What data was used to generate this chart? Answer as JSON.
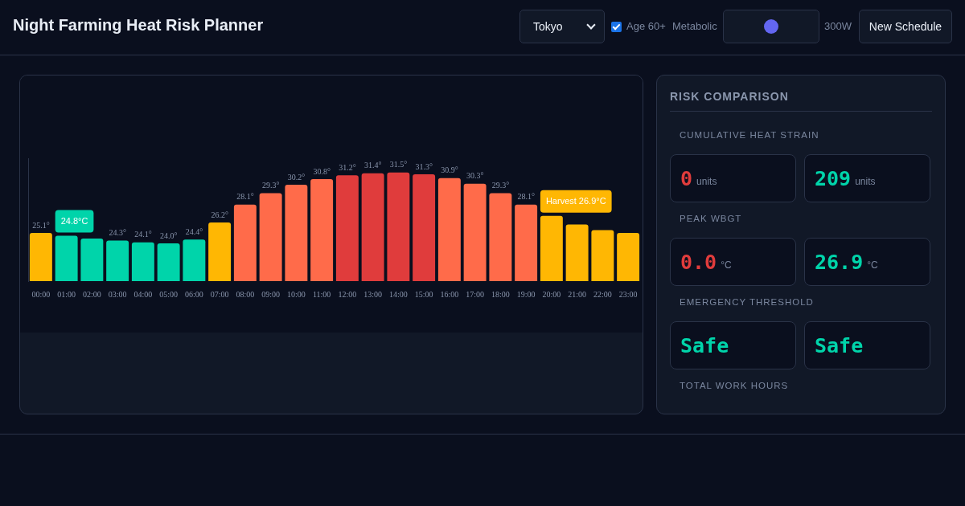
{
  "chart_data": [
    {
      "type": "bar",
      "title": "Night Farming Heat Risk Planner",
      "categories": [
        "00:00",
        "01:00",
        "02:00",
        "03:00",
        "04:00",
        "05:00",
        "06:00",
        "07:00",
        "08:00",
        "09:00",
        "10:00",
        "11:00",
        "12:00",
        "13:00",
        "14:00",
        "15:00",
        "16:00",
        "17:00",
        "18:00",
        "19:00",
        "20:00",
        "21:00",
        "22:00",
        "23:00"
      ],
      "values": [
        25.1,
        24.8,
        24.5,
        24.3,
        24.1,
        24.0,
        24.4,
        26.2,
        28.1,
        29.3,
        30.2,
        30.8,
        31.2,
        31.4,
        31.5,
        31.3,
        30.9,
        30.3,
        29.3,
        28.1,
        26.9,
        26.0,
        25.4,
        25.1
      ],
      "value_labels": [
        "25.1°",
        null,
        null,
        "24.3°",
        "24.1°",
        "24.0°",
        "24.4°",
        "26.2°",
        "28.1°",
        "29.3°",
        "30.2°",
        "30.8°",
        "31.2°",
        "31.4°",
        "31.5°",
        "31.3°",
        "30.9°",
        "30.3°",
        "29.3°",
        "28.1°",
        null,
        null,
        null,
        null
      ],
      "colors": [
        "#ffb703",
        "#00d4aa",
        "#00d4aa",
        "#00d4aa",
        "#00d4aa",
        "#00d4aa",
        "#00d4aa",
        "#ffb703",
        "#ff6b4a",
        "#ff6b4a",
        "#ff6b4a",
        "#ff6b4a",
        "#e03c3c",
        "#e03c3c",
        "#e03c3c",
        "#e03c3c",
        "#ff6b4a",
        "#ff6b4a",
        "#ff6b4a",
        "#ff6b4a",
        "#ffb703",
        "#ffb703",
        "#ffb703",
        "#ffb703"
      ],
      "ylim": [
        20,
        33
      ],
      "tick_labels": "x",
      "legend": false,
      "annotations": [
        {
          "text": "24.8°C",
          "x": "01:00",
          "y": 24.8
        },
        {
          "text": "Harvest 26.9°C",
          "x": "20:00",
          "y": 26.9
        },
        "Tokyo",
        "Age 60+",
        "Metabolic",
        "300W",
        "New Schedule"
      ]
    },
    {
      "type": "other",
      "title": "RISK COMPARISON",
      "annotations": [
        "CUMULATIVE HEAT STRAIN",
        "0 units",
        "209 units",
        "PEAK WBGT",
        "0.0 °C",
        "26.9 °C",
        "EMERGENCY THRESHOLD",
        "Safe",
        "Safe",
        "TOTAL WORK HOURS"
      ],
      "colors": [
        "#e03c3c",
        "#00d4aa",
        "#e03c3c",
        "#00d4aa",
        "#00d4aa",
        "#00d4aa"
      ]
    }
  ]
}
